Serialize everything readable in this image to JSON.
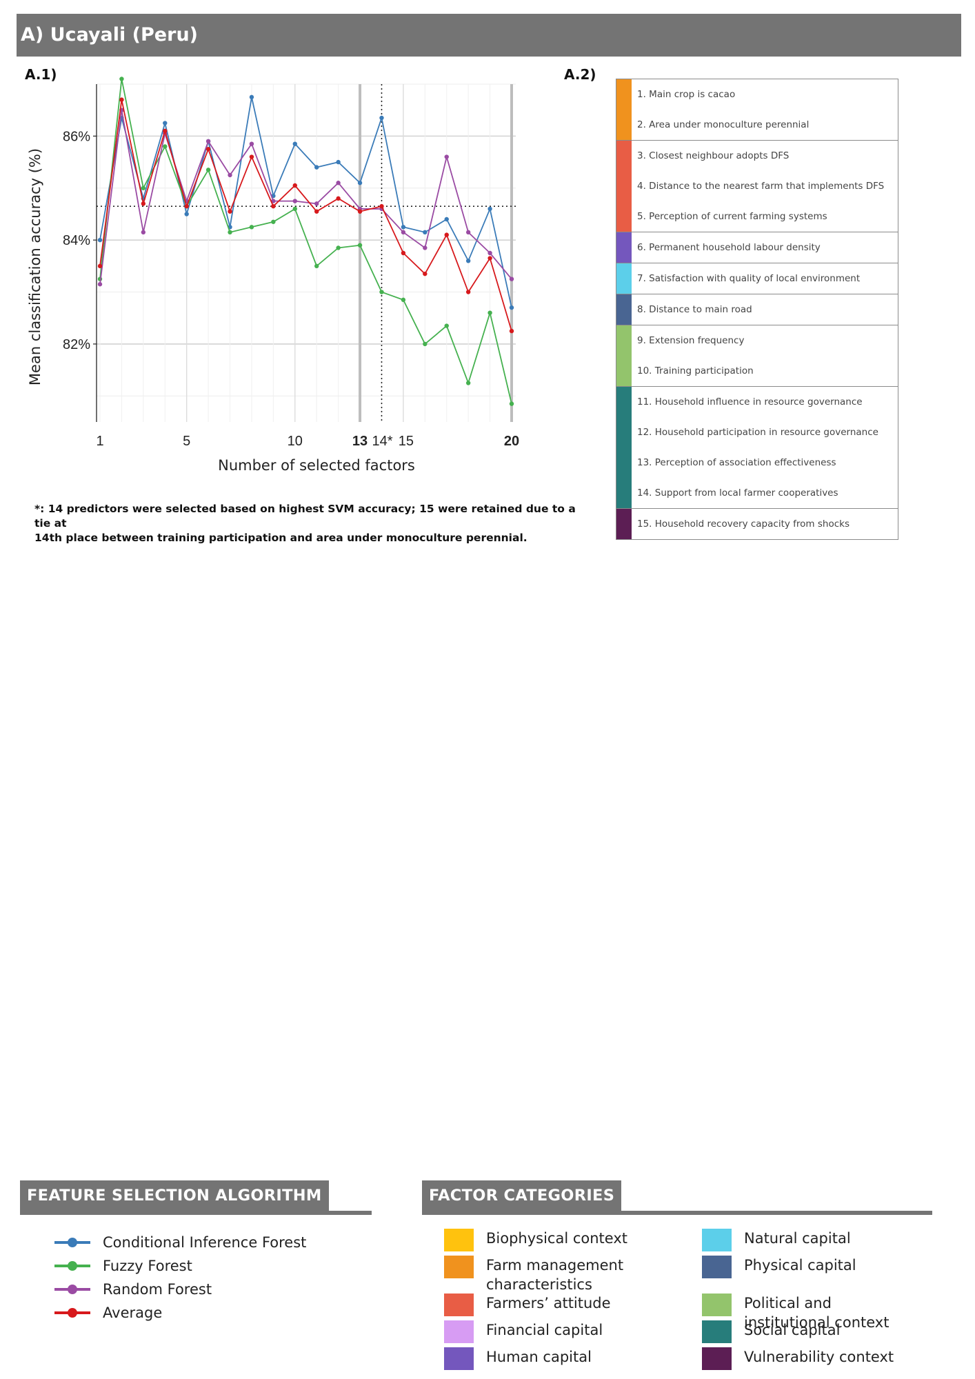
{
  "header": {
    "title": "A) Ucayali (Peru)"
  },
  "panel_labels": {
    "chart": "A.1)",
    "table": "A.2)"
  },
  "footnote": {
    "line1": "*: 14 predictors were selected based on highest SVM accuracy; 15 were retained due to a tie at",
    "line2": "14th place between training participation and area under monoculture perennial."
  },
  "chart_data": {
    "type": "line",
    "xlabel": "Number of selected factors",
    "ylabel": "Mean classification accuracy (%)",
    "xlim": [
      1,
      20
    ],
    "ylim": [
      80.5,
      87.0
    ],
    "x_ticks": [
      {
        "value": 1,
        "label": "1",
        "bold": false
      },
      {
        "value": 5,
        "label": "5",
        "bold": false
      },
      {
        "value": 10,
        "label": "10",
        "bold": false
      },
      {
        "value": 13,
        "label": "13",
        "bold": true
      },
      {
        "value": 14,
        "label": "14*",
        "bold": false
      },
      {
        "value": 15,
        "label": "15",
        "bold": false
      },
      {
        "value": 20,
        "label": "20",
        "bold": true
      }
    ],
    "y_ticks": [
      {
        "value": 82,
        "label": "82%"
      },
      {
        "value": 84,
        "label": "84%"
      },
      {
        "value": 86,
        "label": "86%"
      }
    ],
    "reference_lines": {
      "horizontal_dotted": 84.65,
      "vertical_dotted": 14,
      "vertical_solid": [
        13,
        20
      ]
    },
    "x": [
      1,
      2,
      3,
      4,
      5,
      6,
      7,
      8,
      9,
      10,
      11,
      12,
      13,
      14,
      15,
      16,
      17,
      18,
      19,
      20
    ],
    "series": [
      {
        "name": "Conditional Inference Forest",
        "color": "#3a7bb8",
        "values": [
          84.0,
          86.35,
          84.8,
          86.25,
          84.5,
          85.9,
          84.25,
          86.75,
          84.85,
          85.85,
          85.4,
          85.5,
          85.1,
          86.35,
          84.25,
          84.15,
          84.4,
          83.6,
          84.6,
          82.7
        ]
      },
      {
        "name": "Fuzzy Forest",
        "color": "#45b14f",
        "values": [
          83.25,
          87.1,
          85.0,
          85.8,
          84.65,
          85.35,
          84.15,
          84.25,
          84.35,
          84.6,
          83.5,
          83.85,
          83.9,
          83.0,
          82.85,
          82.0,
          82.35,
          81.25,
          82.6,
          80.85
        ]
      },
      {
        "name": "Random Forest",
        "color": "#9a4ba3",
        "values": [
          83.15,
          86.5,
          84.15,
          86.05,
          84.75,
          85.9,
          85.25,
          85.85,
          84.75,
          84.75,
          84.7,
          85.1,
          84.6,
          84.6,
          84.15,
          83.85,
          85.6,
          84.15,
          83.75,
          83.25
        ]
      },
      {
        "name": "Average",
        "color": "#d7191c",
        "values": [
          83.5,
          86.7,
          84.7,
          86.1,
          84.65,
          85.75,
          84.55,
          85.6,
          84.65,
          85.05,
          84.55,
          84.8,
          84.55,
          84.65,
          83.75,
          83.35,
          84.1,
          83.0,
          83.65,
          82.25
        ]
      }
    ]
  },
  "factor_table": [
    {
      "color": "#f0921e",
      "items": [
        "1. Main crop is cacao",
        "2. Area under monoculture perennial"
      ]
    },
    {
      "color": "#e85d45",
      "items": [
        "3. Closest neighbour adopts DFS",
        "4. Distance to the nearest farm that implements DFS",
        "5. Perception of current farming systems"
      ]
    },
    {
      "color": "#7457bd",
      "items": [
        "6. Permanent household labour density"
      ]
    },
    {
      "color": "#5ccfea",
      "items": [
        "7. Satisfaction with quality of local environment"
      ]
    },
    {
      "color": "#496592",
      "items": [
        "8. Distance to main road"
      ]
    },
    {
      "color": "#93c46c",
      "items": [
        "9. Extension frequency",
        "10. Training participation"
      ]
    },
    {
      "color": "#277d7b",
      "items": [
        "11. Household influence in resource governance",
        "12. Household participation in resource governance",
        "13. Perception of association effectiveness",
        "14. Support from local farmer cooperatives"
      ]
    },
    {
      "color": "#5c1e54",
      "items": [
        "15. Household recovery capacity from shocks"
      ]
    }
  ],
  "algorithm_legend": {
    "title": "FEATURE SELECTION ALGORITHM",
    "items": [
      {
        "label": "Conditional Inference Forest",
        "color": "#3a7bb8"
      },
      {
        "label": "Fuzzy Forest",
        "color": "#45b14f"
      },
      {
        "label": "Random Forest",
        "color": "#9a4ba3"
      },
      {
        "label": "Average",
        "color": "#d7191c"
      }
    ]
  },
  "category_legend": {
    "title": "FACTOR CATEGORIES",
    "left": [
      {
        "label": "Biophysical context",
        "color": "#ffc20e"
      },
      {
        "label": "Farm management characteristics",
        "color": "#f0921e"
      },
      {
        "label": "Farmers’ attitude",
        "color": "#e85d45"
      },
      {
        "label": "Financial capital",
        "color": "#d79cf3"
      },
      {
        "label": "Human capital",
        "color": "#7457bd"
      }
    ],
    "right": [
      {
        "label": "Natural capital",
        "color": "#5ccfea"
      },
      {
        "label": "Physical capital",
        "color": "#496592"
      },
      {
        "label": "Political and institutional context",
        "color": "#93c46c"
      },
      {
        "label": "Social capital",
        "color": "#277d7b"
      },
      {
        "label": "Vulnerability context",
        "color": "#5c1e54"
      }
    ]
  }
}
